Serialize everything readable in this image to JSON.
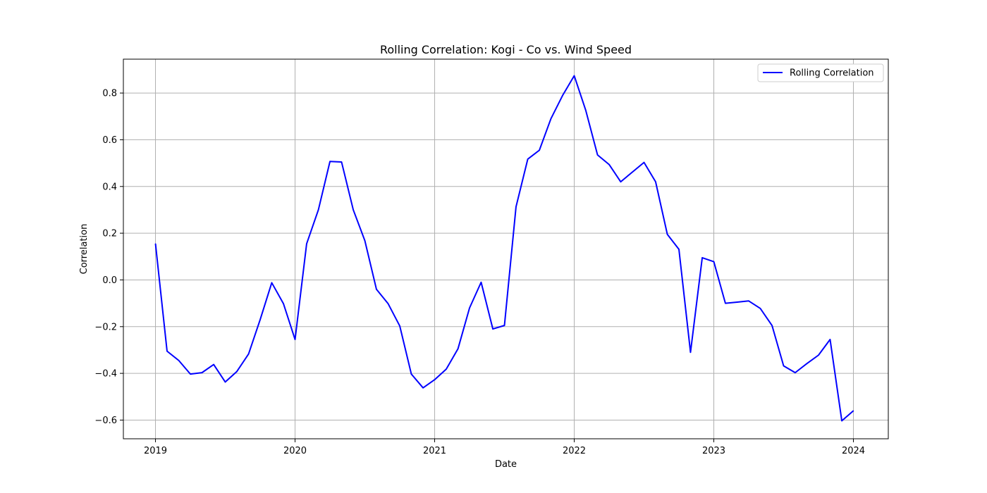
{
  "chart_data": {
    "type": "line",
    "title": "Rolling Correlation: Kogi - Co vs. Wind Speed",
    "xlabel": "Date",
    "ylabel": "Correlation",
    "xlim": [
      2018.77,
      2024.25
    ],
    "ylim": [
      -0.68,
      0.945
    ],
    "grid": true,
    "legend_position": "top-right",
    "x_ticks": [
      {
        "value": 2019,
        "label": "2019"
      },
      {
        "value": 2020,
        "label": "2020"
      },
      {
        "value": 2021,
        "label": "2021"
      },
      {
        "value": 2022,
        "label": "2022"
      },
      {
        "value": 2023,
        "label": "2023"
      },
      {
        "value": 2024,
        "label": "2024"
      }
    ],
    "y_ticks": [
      {
        "value": -0.6,
        "label": "−0.6"
      },
      {
        "value": -0.4,
        "label": "−0.4"
      },
      {
        "value": -0.2,
        "label": "−0.2"
      },
      {
        "value": 0.0,
        "label": "0.0"
      },
      {
        "value": 0.2,
        "label": "0.2"
      },
      {
        "value": 0.4,
        "label": "0.4"
      },
      {
        "value": 0.6,
        "label": "0.6"
      },
      {
        "value": 0.8,
        "label": "0.8"
      }
    ],
    "series": [
      {
        "name": "Rolling Correlation",
        "color": "#0000ff",
        "points": [
          [
            2019.0,
            0.155
          ],
          [
            2019.083,
            -0.305
          ],
          [
            2019.167,
            -0.345
          ],
          [
            2019.25,
            -0.403
          ],
          [
            2019.333,
            -0.397
          ],
          [
            2019.417,
            -0.362
          ],
          [
            2019.5,
            -0.437
          ],
          [
            2019.583,
            -0.392
          ],
          [
            2019.667,
            -0.317
          ],
          [
            2019.75,
            -0.17
          ],
          [
            2019.833,
            -0.012
          ],
          [
            2019.917,
            -0.102
          ],
          [
            2020.0,
            -0.255
          ],
          [
            2020.083,
            0.155
          ],
          [
            2020.167,
            0.3
          ],
          [
            2020.25,
            0.507
          ],
          [
            2020.333,
            0.505
          ],
          [
            2020.417,
            0.3
          ],
          [
            2020.5,
            0.168
          ],
          [
            2020.583,
            -0.04
          ],
          [
            2020.667,
            -0.102
          ],
          [
            2020.75,
            -0.197
          ],
          [
            2020.833,
            -0.403
          ],
          [
            2020.917,
            -0.462
          ],
          [
            2021.0,
            -0.427
          ],
          [
            2021.083,
            -0.382
          ],
          [
            2021.167,
            -0.295
          ],
          [
            2021.25,
            -0.12
          ],
          [
            2021.333,
            -0.01
          ],
          [
            2021.417,
            -0.21
          ],
          [
            2021.5,
            -0.195
          ],
          [
            2021.583,
            0.313
          ],
          [
            2021.667,
            0.517
          ],
          [
            2021.75,
            0.555
          ],
          [
            2021.833,
            0.69
          ],
          [
            2021.917,
            0.79
          ],
          [
            2022.0,
            0.874
          ],
          [
            2022.083,
            0.725
          ],
          [
            2022.167,
            0.535
          ],
          [
            2022.25,
            0.494
          ],
          [
            2022.333,
            0.42
          ],
          [
            2022.417,
            0.462
          ],
          [
            2022.5,
            0.503
          ],
          [
            2022.583,
            0.42
          ],
          [
            2022.667,
            0.195
          ],
          [
            2022.75,
            0.131
          ],
          [
            2022.833,
            -0.31
          ],
          [
            2022.917,
            0.095
          ],
          [
            2023.0,
            0.078
          ],
          [
            2023.083,
            -0.1
          ],
          [
            2023.167,
            -0.095
          ],
          [
            2023.25,
            -0.09
          ],
          [
            2023.333,
            -0.122
          ],
          [
            2023.417,
            -0.195
          ],
          [
            2023.5,
            -0.368
          ],
          [
            2023.583,
            -0.397
          ],
          [
            2023.667,
            -0.358
          ],
          [
            2023.75,
            -0.322
          ],
          [
            2023.833,
            -0.255
          ],
          [
            2023.917,
            -0.603
          ],
          [
            2024.0,
            -0.56
          ]
        ]
      }
    ]
  }
}
